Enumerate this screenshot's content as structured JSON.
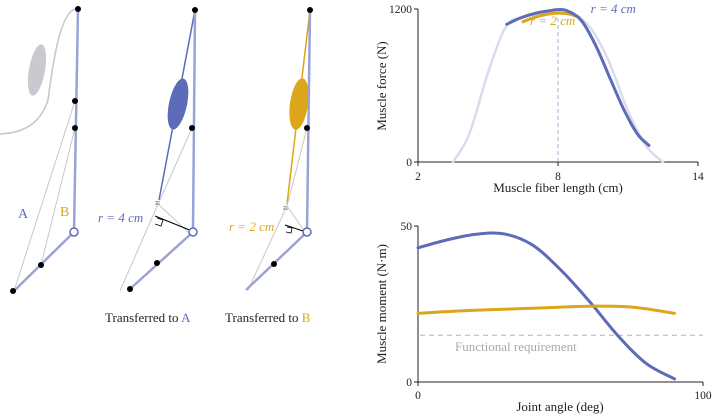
{
  "colors": {
    "blue": "#5d6bb8",
    "blue_light": "#9aa3d6",
    "gold": "#dda51a",
    "pale": "#dadbed",
    "gray": "#c8c8c8",
    "gray_muscle": "#c9c9cf",
    "dashed": "#a9aed8"
  },
  "diagram": {
    "label_a": "A",
    "label_b": "B",
    "panel2_r_label": "r = 4 cm",
    "panel3_r_label": "r = 2 cm",
    "caption2_prefix": "Transferred to ",
    "caption2_target": "A",
    "caption3_prefix": "Transferred to ",
    "caption3_target": "B"
  },
  "chart_data": [
    {
      "type": "line",
      "xlabel": "Muscle fiber length (cm)",
      "ylabel": "Muscle force (N)",
      "xlim": [
        2,
        14
      ],
      "ylim": [
        0,
        1200
      ],
      "xticks": [
        "2",
        "8",
        "14"
      ],
      "yticks": [
        "0",
        "1200"
      ],
      "reference_line_x": 8,
      "series": [
        {
          "name": "",
          "style": "pale",
          "x": [
            3.5,
            4.2,
            5.0,
            5.8,
            6.6,
            7.4,
            8.0,
            8.6,
            9.4,
            10.2,
            11.0,
            11.8,
            12.5
          ],
          "y": [
            0,
            220,
            700,
            1070,
            1140,
            1170,
            1185,
            1170,
            1050,
            780,
            400,
            120,
            0
          ]
        },
        {
          "name": "r = 2 cm",
          "style": "gold",
          "x": [
            6.5,
            7.0,
            7.5,
            8.0,
            8.5,
            8.9
          ],
          "y": [
            1100,
            1135,
            1158,
            1168,
            1160,
            1135
          ]
        },
        {
          "name": "r = 4 cm",
          "style": "blue",
          "x": [
            5.8,
            6.4,
            7.0,
            7.6,
            8.0,
            8.4,
            9.0,
            9.6,
            10.2,
            10.8,
            11.4,
            11.9
          ],
          "y": [
            1080,
            1130,
            1165,
            1185,
            1195,
            1185,
            1110,
            920,
            670,
            420,
            220,
            130
          ]
        }
      ]
    },
    {
      "type": "line",
      "xlabel": "Joint angle (deg)",
      "ylabel": "Muscle moment (N·m)",
      "xlim": [
        0,
        100
      ],
      "ylim": [
        0,
        50
      ],
      "xticks": [
        "0",
        "100"
      ],
      "yticks": [
        "0",
        "50"
      ],
      "threshold": {
        "value": 15,
        "label": "Functional requirement"
      },
      "series": [
        {
          "name": "Transferred to A",
          "style": "blue",
          "x": [
            0,
            10,
            20,
            30,
            40,
            50,
            60,
            70,
            80,
            90
          ],
          "y": [
            43,
            45.5,
            47.3,
            47.5,
            44,
            36,
            26,
            15,
            6,
            1
          ]
        },
        {
          "name": "Transferred to B",
          "style": "gold",
          "x": [
            0,
            15,
            30,
            45,
            60,
            75,
            90
          ],
          "y": [
            22,
            22.8,
            23.3,
            23.8,
            24.3,
            24,
            22
          ]
        }
      ]
    }
  ]
}
